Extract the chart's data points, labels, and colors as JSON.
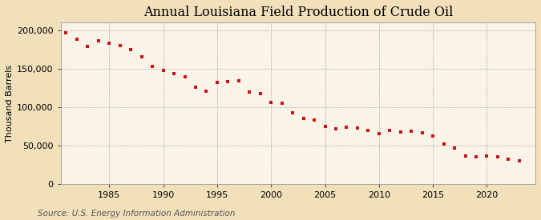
{
  "title": "Annual Louisiana Field Production of Crude Oil",
  "ylabel": "Thousand Barrels",
  "source": "Source: U.S. Energy Information Administration",
  "background_color": "#f2e0bb",
  "plot_background_color": "#f9f3e8",
  "marker_color": "#cc1111",
  "grid_color": "#aaaaaa",
  "years": [
    1981,
    1982,
    1983,
    1984,
    1985,
    1986,
    1987,
    1988,
    1989,
    1990,
    1991,
    1992,
    1993,
    1994,
    1995,
    1996,
    1997,
    1998,
    1999,
    2000,
    2001,
    2002,
    2003,
    2004,
    2005,
    2006,
    2007,
    2008,
    2009,
    2010,
    2011,
    2012,
    2013,
    2014,
    2015,
    2016,
    2017,
    2018,
    2019,
    2020,
    2021,
    2022,
    2023
  ],
  "values": [
    197000,
    188000,
    179000,
    186000,
    183000,
    180000,
    175000,
    165000,
    153000,
    148000,
    144000,
    139000,
    126000,
    121000,
    132000,
    133000,
    134000,
    120000,
    118000,
    106000,
    105000,
    93000,
    85000,
    83000,
    75000,
    72000,
    74000,
    73000,
    70000,
    65000,
    70000,
    68000,
    69000,
    66000,
    62000,
    52000,
    47000,
    36000,
    35000,
    36000,
    35000,
    32000,
    30000
  ],
  "ylim": [
    0,
    210000
  ],
  "yticks": [
    0,
    50000,
    100000,
    150000,
    200000
  ],
  "xticks": [
    1985,
    1990,
    1995,
    2000,
    2005,
    2010,
    2015,
    2020
  ],
  "title_fontsize": 11.5,
  "label_fontsize": 8,
  "tick_fontsize": 8,
  "source_fontsize": 7.5
}
